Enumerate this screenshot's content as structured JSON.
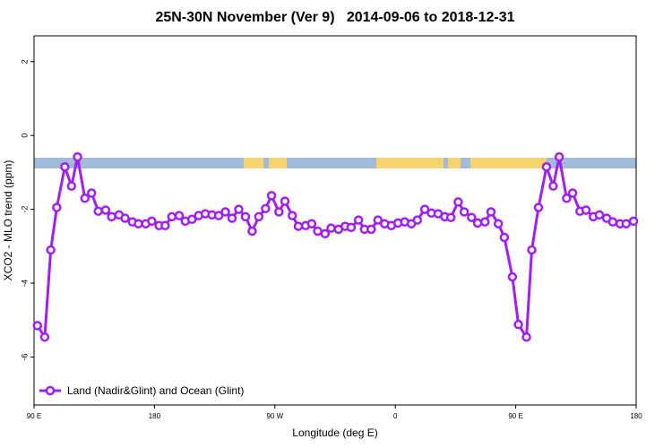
{
  "chart_data": {
    "type": "line",
    "title": "25N-30N November (Ver 9)   2014-09-06 to 2018-12-31",
    "xlabel": "Longitude (deg E)",
    "ylabel": "XCO2 - MLO trend (ppm)",
    "xlim": [
      90,
      540
    ],
    "xticks": [
      {
        "value": 90,
        "label": "90 E"
      },
      180,
      {
        "value": 270,
        "label": "90 W"
      },
      {
        "value": 360,
        "label": "0"
      },
      {
        "value": 450,
        "label": "90 E"
      },
      {
        "value": 540,
        "label": "180"
      }
    ],
    "ylim": [
      -7.3,
      2.7
    ],
    "yticks": [
      -6,
      -4,
      -2,
      0,
      2
    ],
    "legend": "bottom-left",
    "x": [
      92.5,
      98,
      102.5,
      107,
      113,
      118,
      122.5,
      128,
      133,
      138,
      143.5,
      148,
      153.5,
      158,
      163.5,
      168,
      173.5,
      178,
      183.5,
      188,
      193,
      198.5,
      203,
      208,
      213,
      218,
      223,
      228,
      233,
      238,
      243,
      248,
      253,
      258,
      263,
      267.5,
      273,
      277.5,
      283,
      287.5,
      293,
      297.5,
      302,
      307.5,
      312,
      317.5,
      322.5,
      327,
      332.5,
      337,
      342,
      347,
      352,
      357,
      362,
      367,
      372,
      376.5,
      382,
      387,
      392,
      397,
      401.5,
      407,
      411.5,
      417,
      421.5,
      427,
      431.5,
      437,
      441.5,
      447.5,
      452,
      458,
      462,
      467,
      473,
      478,
      482.5,
      488,
      492.5,
      498,
      502.5,
      508,
      512.5,
      518,
      522.5,
      528,
      532.5,
      538
    ],
    "series": [
      {
        "name": "Land (Nadir&Glint) and Ocean (Glint)",
        "color": "#a020f0",
        "values": [
          -5.15,
          -5.46,
          -3.1,
          -1.95,
          -0.85,
          -1.37,
          -0.58,
          -1.7,
          -1.56,
          -2.05,
          -2.02,
          -2.2,
          -2.15,
          -2.24,
          -2.34,
          -2.39,
          -2.39,
          -2.32,
          -2.44,
          -2.44,
          -2.2,
          -2.17,
          -2.32,
          -2.27,
          -2.17,
          -2.12,
          -2.15,
          -2.17,
          -2.07,
          -2.24,
          -2.0,
          -2.2,
          -2.59,
          -2.2,
          -1.98,
          -1.63,
          -2.07,
          -1.78,
          -2.17,
          -2.46,
          -2.44,
          -2.39,
          -2.59,
          -2.66,
          -2.51,
          -2.54,
          -2.46,
          -2.49,
          -2.29,
          -2.54,
          -2.54,
          -2.29,
          -2.39,
          -2.44,
          -2.37,
          -2.34,
          -2.39,
          -2.29,
          -2.0,
          -2.1,
          -2.12,
          -2.2,
          -2.22,
          -1.8,
          -2.07,
          -2.22,
          -2.37,
          -2.34,
          -2.07,
          -2.39,
          -2.76,
          -3.83,
          -5.12,
          -5.46,
          -3.1,
          -1.95,
          -0.85,
          -1.37,
          -0.58,
          -1.7,
          -1.56,
          -2.05,
          -2.02,
          -2.2,
          -2.15,
          -2.24,
          -2.34,
          -2.39,
          -2.39,
          -2.32
        ]
      }
    ]
  }
}
